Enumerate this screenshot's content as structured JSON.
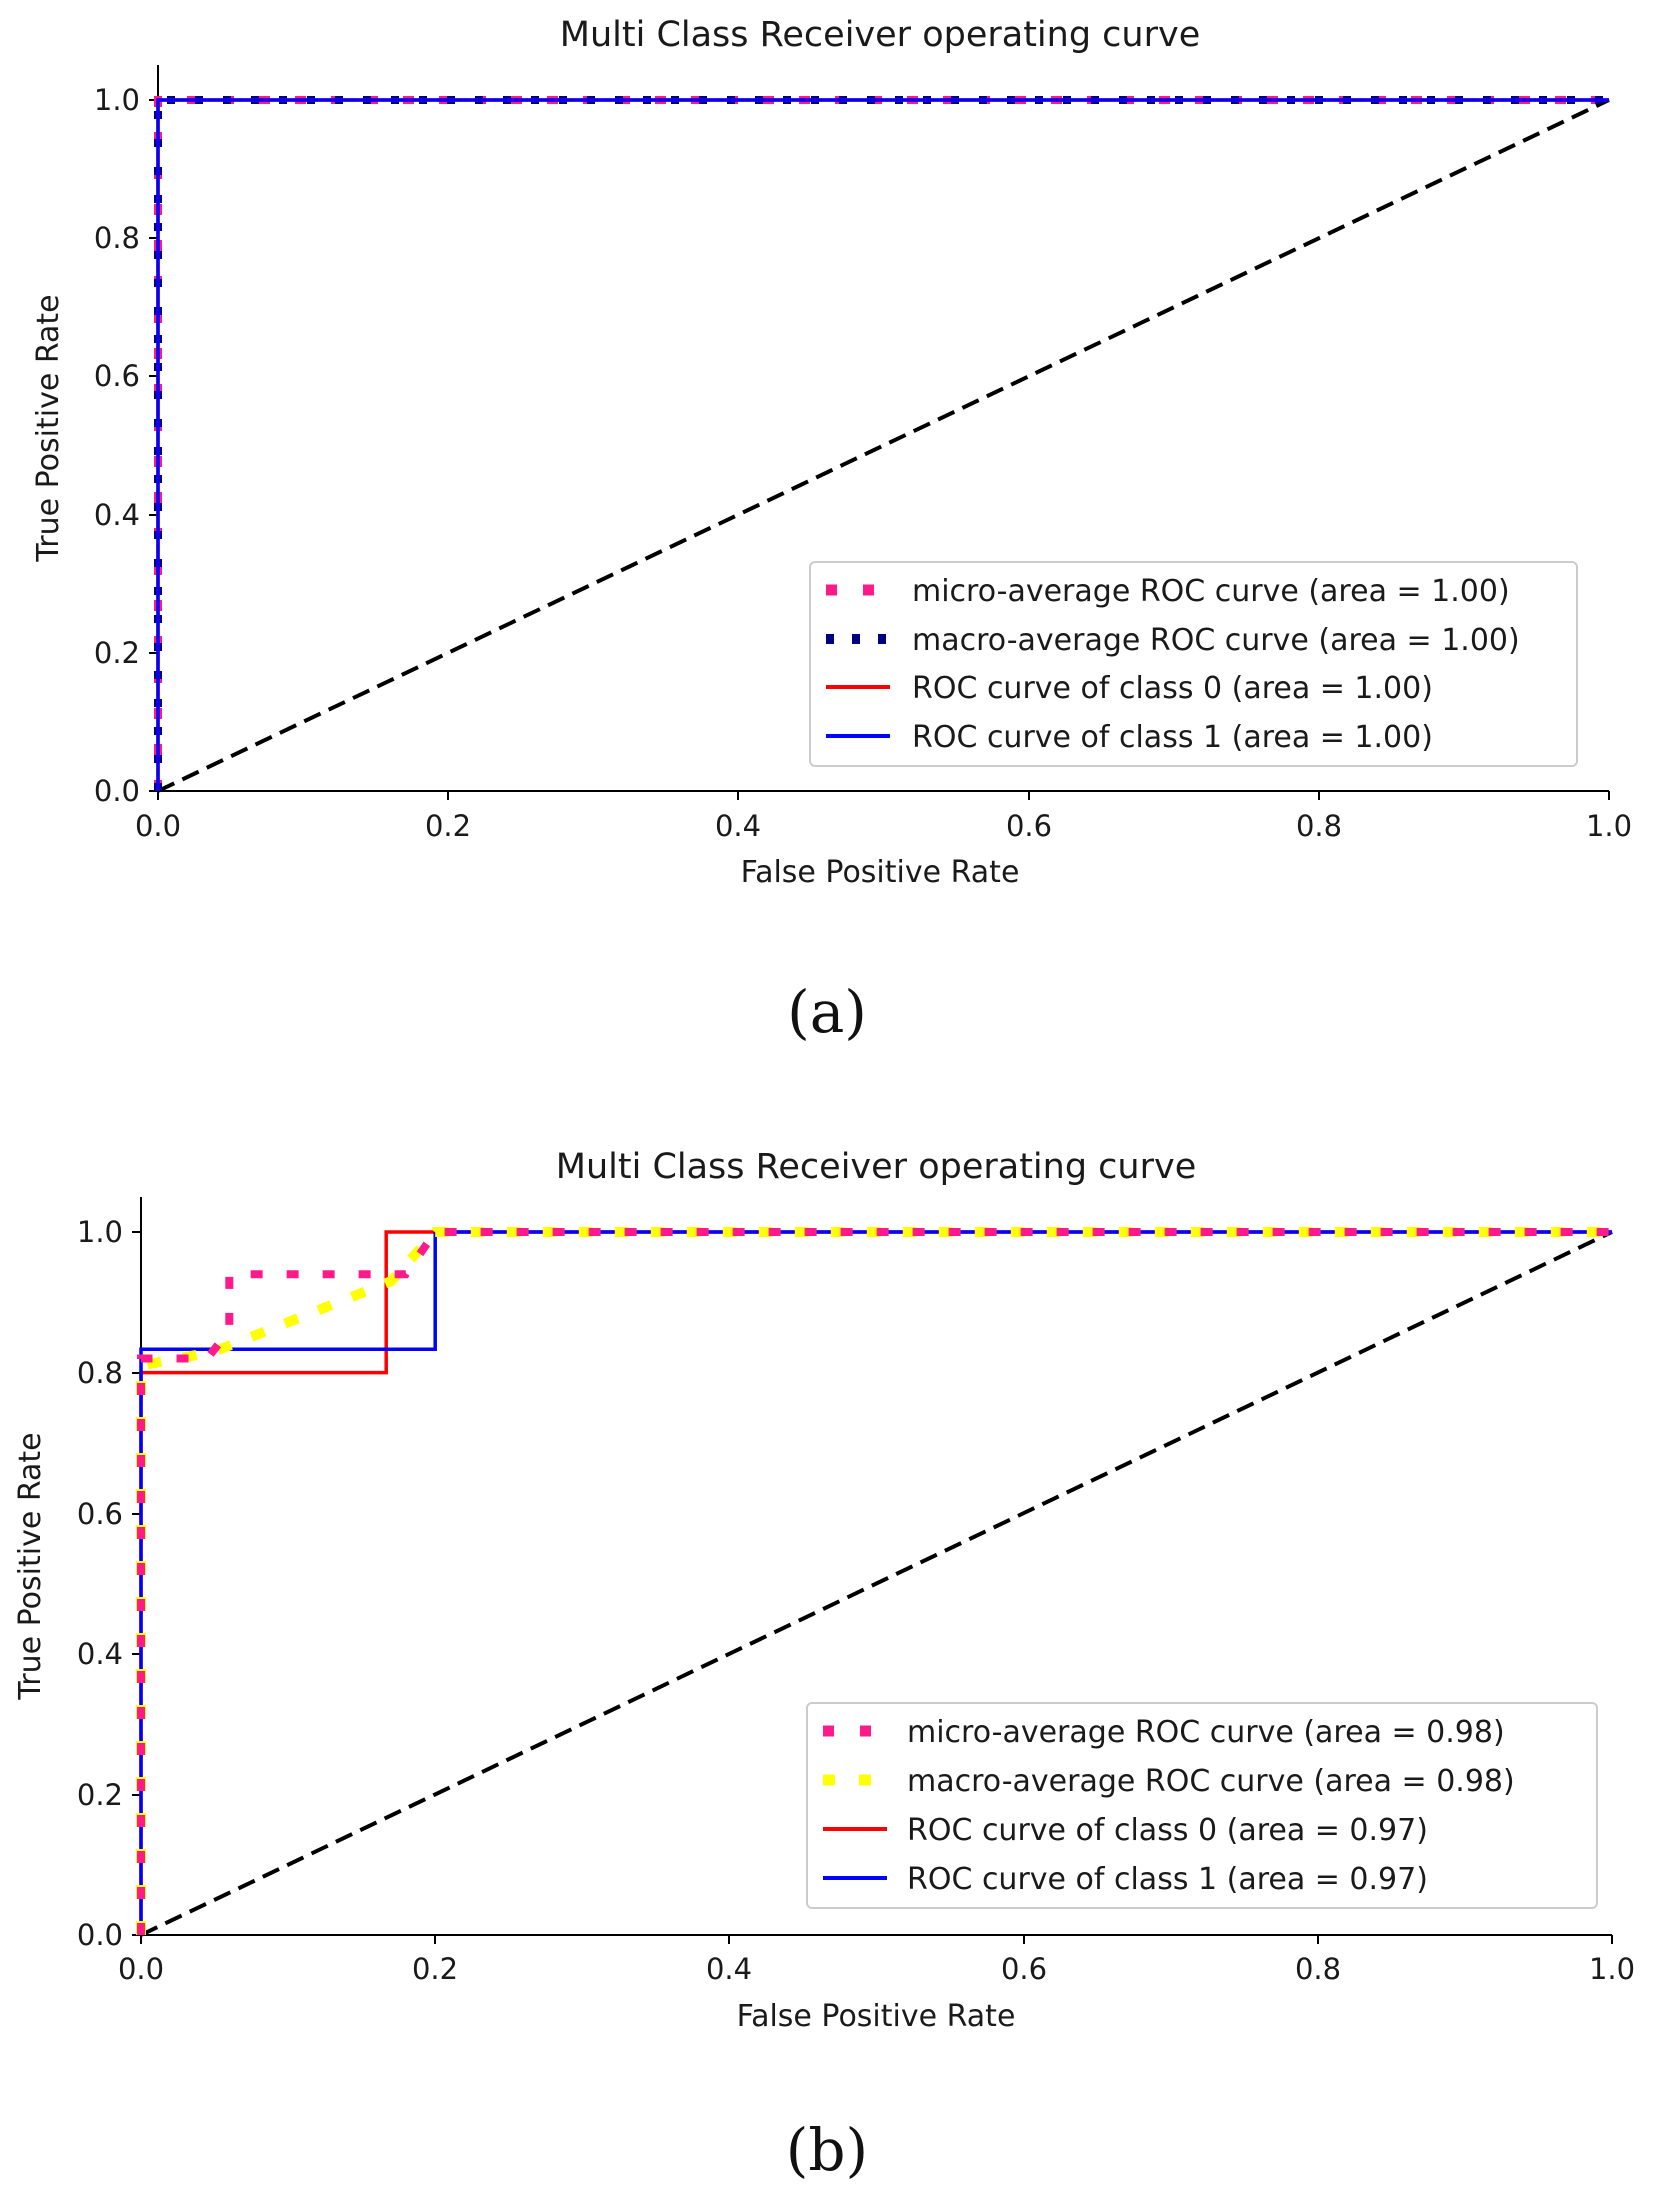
{
  "chart_data": [
    {
      "type": "line",
      "panel_label": "(a)",
      "title": "Multi Class Receiver operating curve",
      "xlabel": "False Positive Rate",
      "ylabel": "True Positive Rate",
      "xlim": [
        0.0,
        1.0
      ],
      "ylim": [
        0.0,
        1.05
      ],
      "xticks": [
        "0.0",
        "0.2",
        "0.4",
        "0.6",
        "0.8",
        "1.0"
      ],
      "yticks": [
        "0.0",
        "0.2",
        "0.4",
        "0.6",
        "0.8",
        "1.0"
      ],
      "grid": false,
      "legend_position": "lower-right",
      "series": [
        {
          "name": "micro-average ROC curve (area = 1.00)",
          "color": "#ff1a8c",
          "style": "dotted-thick",
          "x": [
            0.0,
            0.0,
            1.0
          ],
          "y": [
            0.0,
            1.0,
            1.0
          ]
        },
        {
          "name": "macro-average ROC curve (area = 1.00)",
          "color": "#000080",
          "style": "dotted",
          "x": [
            0.0,
            0.0,
            1.0
          ],
          "y": [
            0.0,
            1.0,
            1.0
          ]
        },
        {
          "name": "ROC curve of class 0 (area = 1.00)",
          "color": "#ff0000",
          "style": "solid",
          "x": [
            0.0,
            0.0,
            1.0
          ],
          "y": [
            0.0,
            1.0,
            1.0
          ]
        },
        {
          "name": "ROC curve of class 1 (area = 1.00)",
          "color": "#0000ff",
          "style": "solid",
          "x": [
            0.0,
            0.0,
            1.0
          ],
          "y": [
            0.0,
            1.0,
            1.0
          ]
        }
      ],
      "reference_line": {
        "x": [
          0.0,
          1.0
        ],
        "y": [
          0.0,
          1.0
        ],
        "color": "#000000",
        "style": "dashed"
      }
    },
    {
      "type": "line",
      "panel_label": "(b)",
      "title": "Multi Class Receiver operating curve",
      "xlabel": "False Positive Rate",
      "ylabel": "True Positive Rate",
      "xlim": [
        0.0,
        1.0
      ],
      "ylim": [
        0.0,
        1.05
      ],
      "xticks": [
        "0.0",
        "0.2",
        "0.4",
        "0.6",
        "0.8",
        "1.0"
      ],
      "yticks": [
        "0.0",
        "0.2",
        "0.4",
        "0.6",
        "0.8",
        "1.0"
      ],
      "grid": false,
      "legend_position": "lower-right",
      "series": [
        {
          "name": "micro-average ROC curve (area = 0.98)",
          "color": "#ff1a8c",
          "style": "dotted-thick",
          "x": [
            0.0,
            0.0,
            0.045,
            0.06,
            0.06,
            0.18,
            0.19,
            0.2,
            1.0
          ],
          "y": [
            0.0,
            0.82,
            0.82,
            0.86,
            0.94,
            0.94,
            0.97,
            1.0,
            1.0
          ]
        },
        {
          "name": "macro-average ROC curve (area = 0.98)",
          "color": "#ffff00",
          "style": "dotted-thick",
          "x": [
            0.0,
            0.0,
            0.05,
            0.17,
            0.2,
            1.0
          ],
          "y": [
            0.0,
            0.81,
            0.83,
            0.93,
            1.0,
            1.0
          ]
        },
        {
          "name": "ROC curve of class 0 (area = 0.97)",
          "color": "#ff0000",
          "style": "solid",
          "x": [
            0.0,
            0.0,
            0.1667,
            0.1667,
            1.0
          ],
          "y": [
            0.0,
            0.8,
            0.8,
            1.0,
            1.0
          ]
        },
        {
          "name": "ROC curve of class 1 (area = 0.97)",
          "color": "#0000ff",
          "style": "solid",
          "x": [
            0.0,
            0.0,
            0.2,
            0.2,
            1.0
          ],
          "y": [
            0.0,
            0.8333,
            0.8333,
            1.0,
            1.0
          ]
        }
      ],
      "reference_line": {
        "x": [
          0.0,
          1.0
        ],
        "y": [
          0.0,
          1.0
        ],
        "color": "#000000",
        "style": "dashed"
      }
    }
  ]
}
